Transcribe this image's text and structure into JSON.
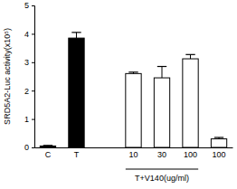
{
  "chart_data": {
    "type": "bar",
    "y_label": "SRD5A2-Luc activity(x10⁵)",
    "categories": [
      "C",
      "T",
      null,
      "10",
      "30",
      "100",
      "100"
    ],
    "values": [
      0.05,
      3.85,
      null,
      2.6,
      2.45,
      3.12,
      0.3
    ],
    "errors": [
      0.02,
      0.2,
      null,
      0.05,
      0.4,
      0.15,
      0.05
    ],
    "colors": [
      "#000000",
      "#000000",
      null,
      "#ffffff",
      "#ffffff",
      "#ffffff",
      "#ffffff"
    ],
    "ylim": [
      0,
      5
    ],
    "yticks": [
      0,
      1,
      2,
      3,
      4,
      5
    ],
    "group_label": "T+V140(ug/ml)"
  }
}
